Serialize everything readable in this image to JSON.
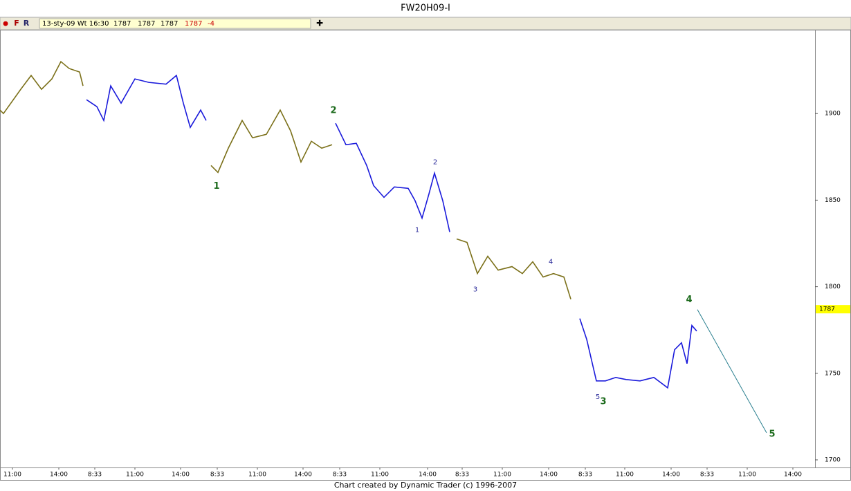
{
  "window": {
    "title": "FW20H09-I"
  },
  "toolbar": {
    "buttons": [
      "●",
      "F",
      "R"
    ],
    "date": "13-sty-09 Wt 16:30",
    "open": 1787,
    "high": 1787,
    "low": 1787,
    "close": 1787,
    "change": -4,
    "add": "✚"
  },
  "chart_data": {
    "type": "line",
    "xlim": [
      0,
      1178
    ],
    "ylim": [
      1695.6,
      1948.4
    ],
    "yticks": [
      1700,
      1750,
      1800,
      1850,
      1900
    ],
    "xticks": [
      {
        "value": 18,
        "label": "11:00"
      },
      {
        "value": 85,
        "label": "14:00"
      },
      {
        "value": 137,
        "label": "8:33"
      },
      {
        "value": 195,
        "label": "11:00"
      },
      {
        "value": 261,
        "label": "14:00"
      },
      {
        "value": 314,
        "label": "8:33"
      },
      {
        "value": 372,
        "label": "11:00"
      },
      {
        "value": 438,
        "label": "14:00"
      },
      {
        "value": 491,
        "label": "8:33"
      },
      {
        "value": 549,
        "label": "11:00"
      },
      {
        "value": 618,
        "label": "14:00"
      },
      {
        "value": 668,
        "label": "8:33"
      },
      {
        "value": 726,
        "label": "11:00"
      },
      {
        "value": 793,
        "label": "14:00"
      },
      {
        "value": 846,
        "label": "8:33"
      },
      {
        "value": 903,
        "label": "11:00"
      },
      {
        "value": 970,
        "label": "14:00"
      },
      {
        "value": 1022,
        "label": "8:33"
      },
      {
        "value": 1080,
        "label": "11:00"
      },
      {
        "value": 1146,
        "label": "14:00"
      }
    ],
    "series": [
      {
        "color": "#7b7019",
        "x": [
          0,
          5,
          30,
          45,
          60,
          75,
          88,
          100,
          115,
          120
        ],
        "values": [
          1902,
          1900,
          1914,
          1922,
          1914,
          1920,
          1930,
          1926,
          1924,
          1916
        ]
      },
      {
        "color": "#1a1adb",
        "x": [
          125,
          140,
          150,
          160,
          175,
          195,
          215,
          240,
          255,
          265,
          275,
          290,
          298
        ],
        "values": [
          1908,
          1904,
          1896,
          1916,
          1906,
          1920,
          1918,
          1917,
          1922,
          1906,
          1892,
          1902,
          1896
        ]
      },
      {
        "color": "#7b7019",
        "x": [
          305,
          315,
          330,
          350,
          365,
          385,
          405,
          420,
          435,
          450,
          465,
          480
        ],
        "values": [
          1870,
          1866,
          1880,
          1896,
          1886,
          1888,
          1902,
          1890,
          1872,
          1884,
          1880,
          1882
        ]
      },
      {
        "color": "#1a1adb",
        "x": [
          485,
          500,
          515,
          530,
          540,
          555,
          570,
          590,
          600,
          610,
          620,
          628,
          640,
          650
        ],
        "values": [
          1894.4,
          1882,
          1882.8,
          1870,
          1858.4,
          1851.6,
          1857.6,
          1856.8,
          1849.6,
          1839.6,
          1853.6,
          1865.6,
          1849.6,
          1831.6
        ]
      },
      {
        "color": "#7b7019",
        "x": [
          660,
          675,
          690,
          705,
          720,
          740,
          755,
          770,
          785,
          800,
          815,
          825
        ],
        "values": [
          1827.6,
          1825.6,
          1807.6,
          1817.6,
          1809.6,
          1811.6,
          1807.6,
          1814.4,
          1805.6,
          1807.6,
          1805.6,
          1792.8
        ]
      },
      {
        "color": "#1a1adb",
        "x": [
          838,
          848,
          855,
          862,
          875,
          890,
          905,
          925,
          945,
          965,
          975,
          985,
          993,
          1000,
          1007
        ],
        "values": [
          1781.6,
          1769.6,
          1757.6,
          1745.6,
          1745.6,
          1747.6,
          1746.4,
          1745.6,
          1747.6,
          1741.6,
          1763.6,
          1767.6,
          1755.6,
          1777.6,
          1774.4
        ]
      }
    ],
    "projection": {
      "color": "#2a7f8f",
      "x": [
        1008,
        1108
      ],
      "values": [
        1786.8,
        1715.6
      ]
    },
    "annotations": [
      {
        "text": "1",
        "x": 313,
        "y": 1858,
        "color": "#1d6b1d"
      },
      {
        "text": "2",
        "x": 482,
        "y": 1901.6,
        "color": "#1d6b1d"
      },
      {
        "text": "1",
        "x": 603,
        "y": 1832.8,
        "color": "#2a2a9a"
      },
      {
        "text": "2",
        "x": 629,
        "y": 1872,
        "color": "#2a2a9a"
      },
      {
        "text": "3",
        "x": 687,
        "y": 1798.4,
        "color": "#2a2a9a"
      },
      {
        "text": "4",
        "x": 796,
        "y": 1814.4,
        "color": "#2a2a9a"
      },
      {
        "text": "5",
        "x": 864,
        "y": 1736.4,
        "color": "#2a2a9a"
      },
      {
        "text": "3",
        "x": 872,
        "y": 1733.6,
        "color": "#1d6b1d"
      },
      {
        "text": "4",
        "x": 996,
        "y": 1792.4,
        "color": "#1d6b1d"
      },
      {
        "text": "5",
        "x": 1116,
        "y": 1714.8,
        "color": "#1d6b1d"
      }
    ],
    "last_price": 1787
  },
  "footer": "Chart created by Dynamic Trader  (c) 1996-2007"
}
